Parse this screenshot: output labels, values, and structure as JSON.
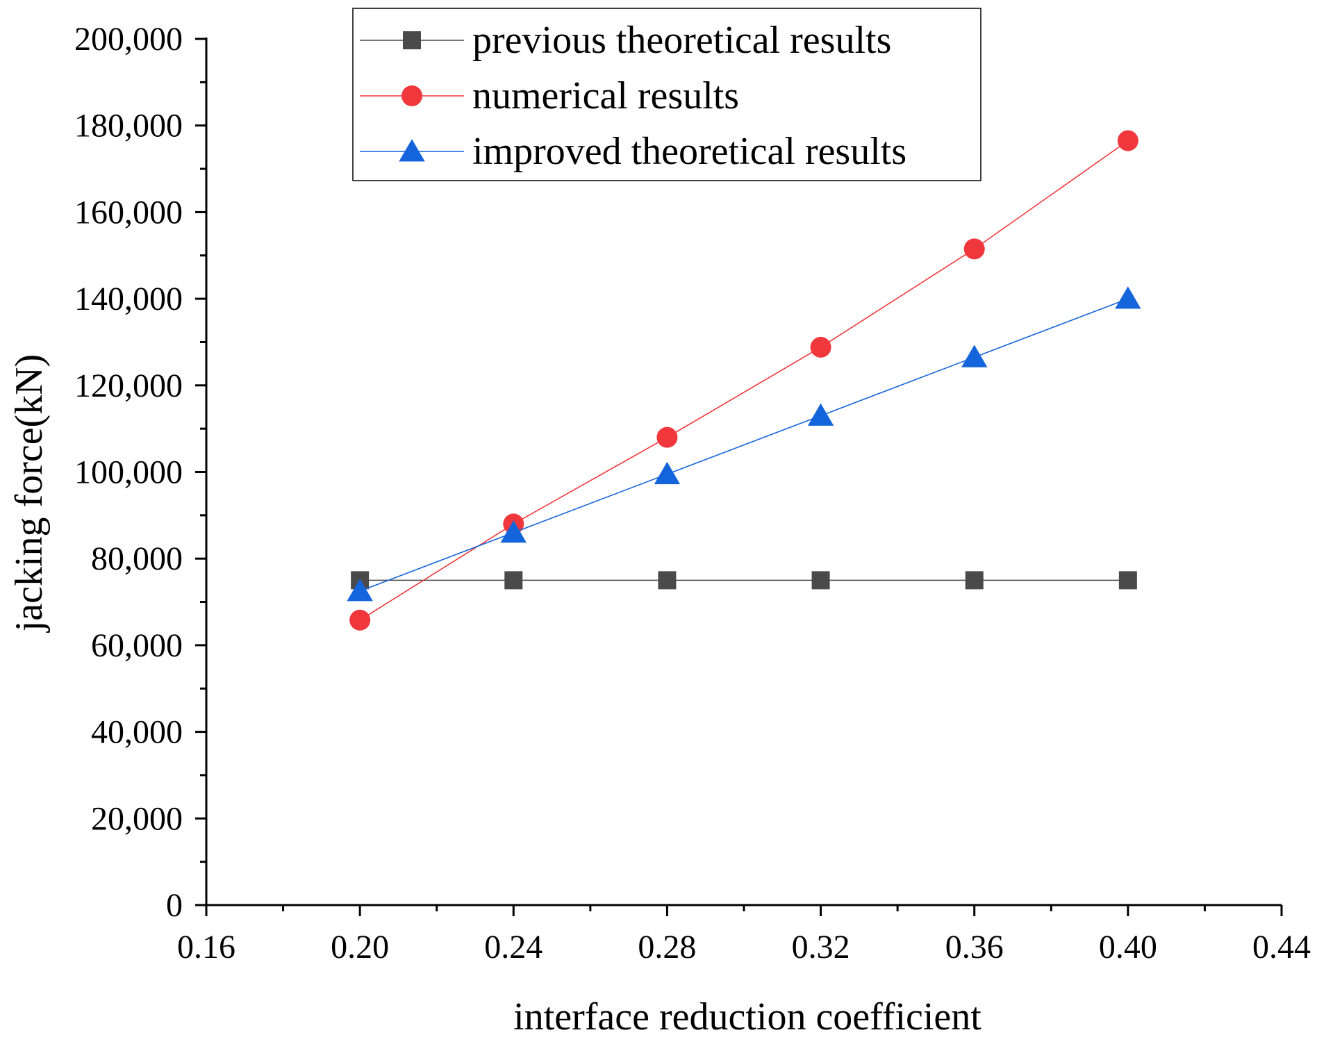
{
  "chart_data": {
    "type": "line",
    "title": "",
    "xlabel": "interface reduction coefficient",
    "ylabel": "jacking force(kN)",
    "xlim": [
      0.16,
      0.44
    ],
    "ylim": [
      0,
      200000
    ],
    "x_ticks": [
      "0.16",
      "0.20",
      "0.24",
      "0.28",
      "0.32",
      "0.36",
      "0.40",
      "0.44"
    ],
    "y_ticks": [
      "0",
      "20,000",
      "40,000",
      "60,000",
      "80,000",
      "100,000",
      "120,000",
      "140,000",
      "160,000",
      "180,000",
      "200,000"
    ],
    "x": [
      0.2,
      0.24,
      0.28,
      0.32,
      0.36,
      0.4
    ],
    "series": [
      {
        "name": "previous theoretical results",
        "marker": "square",
        "color": "#4a4a4a",
        "values": [
          75000,
          75000,
          75000,
          75000,
          75000,
          75000
        ]
      },
      {
        "name": "numerical results",
        "marker": "circle",
        "color": "#f0373c",
        "values": [
          65800,
          88000,
          108000,
          128800,
          151500,
          176500
        ]
      },
      {
        "name": "improved theoretical results",
        "marker": "triangle",
        "color": "#1464dc",
        "values": [
          72500,
          86000,
          99500,
          113000,
          126500,
          140000
        ]
      }
    ],
    "grid": false,
    "legend_position": "top-center"
  }
}
